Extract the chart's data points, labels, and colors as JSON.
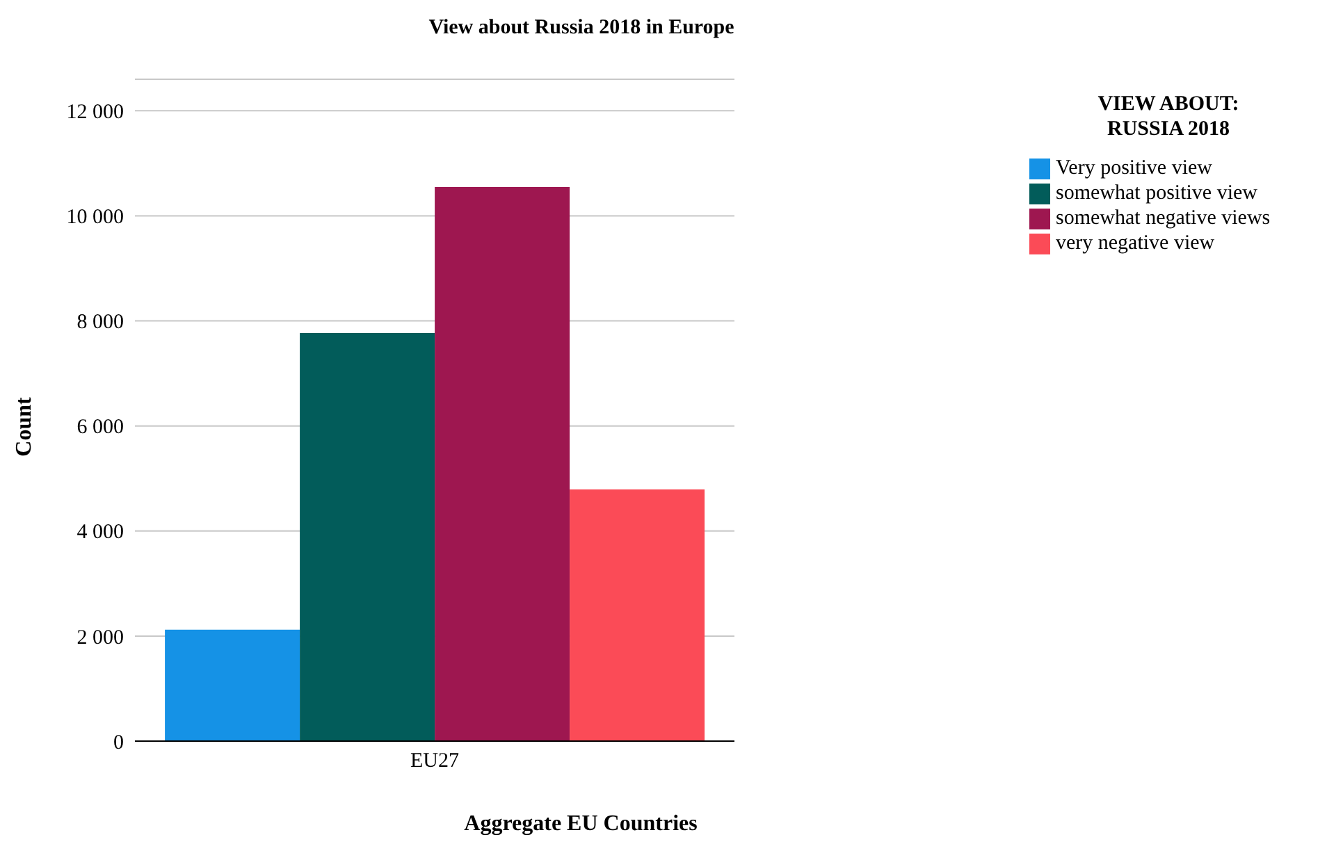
{
  "chart_data": {
    "type": "bar",
    "title": "View about Russia 2018 in Europe",
    "xlabel": "Aggregate EU Countries",
    "ylabel": "Count",
    "legend_title": "VIEW ABOUT:\nRUSSIA 2018",
    "categories": [
      "EU27"
    ],
    "series": [
      {
        "name": "Very positive view",
        "color": "#1592e6",
        "values": [
          2120
        ]
      },
      {
        "name": "somewhat positive view",
        "color": "#025c5a",
        "values": [
          7770
        ]
      },
      {
        "name": "somewhat negative views",
        "color": "#9e1750",
        "values": [
          10550
        ]
      },
      {
        "name": "very negative view",
        "color": "#fb4b57",
        "values": [
          4790
        ]
      }
    ],
    "ylim": [
      0,
      12600
    ],
    "yticks": [
      {
        "value": 0,
        "label": "0"
      },
      {
        "value": 2000,
        "label": "2 000"
      },
      {
        "value": 4000,
        "label": "4 000"
      },
      {
        "value": 6000,
        "label": "6 000"
      },
      {
        "value": 8000,
        "label": "8 000"
      },
      {
        "value": 10000,
        "label": "10 000"
      },
      {
        "value": 12000,
        "label": "12 000"
      }
    ],
    "grid": "y",
    "legend": "top right"
  }
}
